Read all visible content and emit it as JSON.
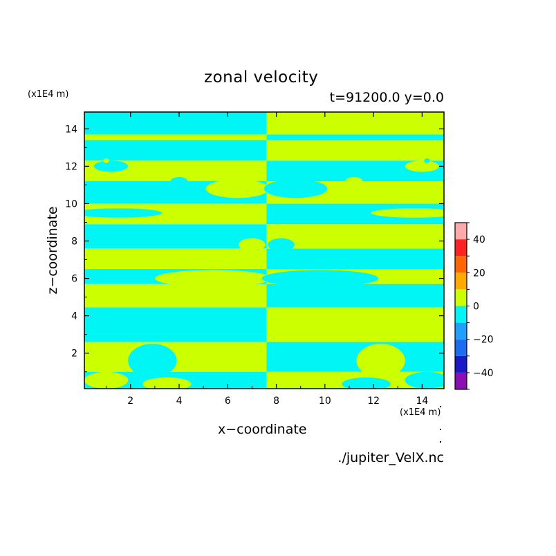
{
  "chart_data": {
    "type": "heatmap",
    "title": "zonal velocity",
    "subtitle": "t=91200.0 y=0.0",
    "xlabel": "x−coordinate",
    "ylabel": "z−coordinate",
    "x_unit": "(x1E4 m)",
    "y_unit": "(x1E4 m)",
    "source": "./jupiter_VelX.nc",
    "xlim": [
      0.1,
      14.9
    ],
    "ylim": [
      0.1,
      14.9
    ],
    "xticks": [
      2,
      4,
      6,
      8,
      10,
      12,
      14
    ],
    "yticks": [
      2,
      4,
      6,
      8,
      10,
      12,
      14
    ],
    "legend_position": "right",
    "colorbar": {
      "levels": [
        -50,
        -40,
        -30,
        -20,
        -10,
        0,
        10,
        20,
        30,
        40,
        50
      ],
      "ticks": [
        40,
        20,
        0,
        -20,
        -40
      ],
      "tick_labels": [
        "40",
        "20",
        "0",
        "−20",
        "−40"
      ],
      "colors": [
        "#8c0fb4",
        "#1a19c8",
        "#1b6cf0",
        "#1fa0ff",
        "#00f5f5",
        "#ccff00",
        "#ffaa00",
        "#ff6600",
        "#ff2222",
        "#ffaaaa"
      ]
    },
    "x_split": 7.6,
    "left_bands": [
      {
        "z0": 0.1,
        "z1": 1.0,
        "sign": "negative"
      },
      {
        "z0": 1.0,
        "z1": 2.6,
        "sign": "positive"
      },
      {
        "z0": 2.6,
        "z1": 4.45,
        "sign": "negative"
      },
      {
        "z0": 4.45,
        "z1": 5.7,
        "sign": "positive"
      },
      {
        "z0": 5.7,
        "z1": 6.5,
        "sign": "negative"
      },
      {
        "z0": 6.5,
        "z1": 7.6,
        "sign": "positive"
      },
      {
        "z0": 7.6,
        "z1": 8.9,
        "sign": "negative"
      },
      {
        "z0": 8.9,
        "z1": 10.0,
        "sign": "positive"
      },
      {
        "z0": 10.0,
        "z1": 11.2,
        "sign": "negative"
      },
      {
        "z0": 11.2,
        "z1": 12.3,
        "sign": "positive"
      },
      {
        "z0": 12.3,
        "z1": 13.4,
        "sign": "negative"
      },
      {
        "z0": 13.4,
        "z1": 13.7,
        "sign": "positive"
      },
      {
        "z0": 13.7,
        "z1": 14.9,
        "sign": "negative"
      }
    ],
    "right_bands": [
      {
        "z0": 0.1,
        "z1": 1.0,
        "sign": "positive"
      },
      {
        "z0": 1.0,
        "z1": 2.6,
        "sign": "negative"
      },
      {
        "z0": 2.6,
        "z1": 4.45,
        "sign": "positive"
      },
      {
        "z0": 4.45,
        "z1": 5.7,
        "sign": "negative"
      },
      {
        "z0": 5.7,
        "z1": 6.5,
        "sign": "positive"
      },
      {
        "z0": 6.5,
        "z1": 7.6,
        "sign": "negative"
      },
      {
        "z0": 7.6,
        "z1": 8.9,
        "sign": "positive"
      },
      {
        "z0": 8.9,
        "z1": 10.0,
        "sign": "negative"
      },
      {
        "z0": 10.0,
        "z1": 11.2,
        "sign": "positive"
      },
      {
        "z0": 11.2,
        "z1": 12.3,
        "sign": "negative"
      },
      {
        "z0": 12.3,
        "z1": 13.4,
        "sign": "positive"
      },
      {
        "z0": 13.4,
        "z1": 13.7,
        "sign": "negative"
      },
      {
        "z0": 13.7,
        "z1": 14.9,
        "sign": "positive"
      }
    ],
    "blobs": [
      {
        "x": 2.9,
        "z": 1.6,
        "rx": 1.0,
        "rz": 0.9,
        "sign": "negative"
      },
      {
        "x": 12.3,
        "z": 1.6,
        "rx": 1.0,
        "rz": 0.9,
        "sign": "positive"
      },
      {
        "x": 1.0,
        "z": 0.55,
        "rx": 0.9,
        "rz": 0.45,
        "sign": "positive"
      },
      {
        "x": 3.5,
        "z": 0.35,
        "rx": 1.0,
        "rz": 0.35,
        "sign": "positive"
      },
      {
        "x": 11.7,
        "z": 0.35,
        "rx": 1.0,
        "rz": 0.35,
        "sign": "negative"
      },
      {
        "x": 14.2,
        "z": 0.55,
        "rx": 0.9,
        "rz": 0.45,
        "sign": "negative"
      },
      {
        "x": 5.4,
        "z": 6.0,
        "rx": 2.4,
        "rz": 0.45,
        "sign": "positive"
      },
      {
        "x": 9.8,
        "z": 6.0,
        "rx": 2.4,
        "rz": 0.45,
        "sign": "negative"
      },
      {
        "x": 5.6,
        "z": 7.0,
        "rx": 1.6,
        "rz": 0.4,
        "sign": "positive"
      },
      {
        "x": 9.6,
        "z": 7.0,
        "rx": 1.6,
        "rz": 0.4,
        "sign": "negative"
      },
      {
        "x": 7.0,
        "z": 7.8,
        "rx": 0.55,
        "rz": 0.35,
        "sign": "positive"
      },
      {
        "x": 8.2,
        "z": 7.8,
        "rx": 0.55,
        "rz": 0.35,
        "sign": "negative"
      },
      {
        "x": 6.4,
        "z": 10.8,
        "rx": 1.3,
        "rz": 0.5,
        "sign": "positive"
      },
      {
        "x": 8.8,
        "z": 10.8,
        "rx": 1.3,
        "rz": 0.5,
        "sign": "negative"
      },
      {
        "x": 4.0,
        "z": 11.2,
        "rx": 0.35,
        "rz": 0.22,
        "sign": "negative"
      },
      {
        "x": 11.2,
        "z": 11.2,
        "rx": 0.35,
        "rz": 0.22,
        "sign": "positive"
      },
      {
        "x": 1.2,
        "z": 12.0,
        "rx": 0.7,
        "rz": 0.3,
        "sign": "negative"
      },
      {
        "x": 14.0,
        "z": 12.0,
        "rx": 0.7,
        "rz": 0.3,
        "sign": "positive"
      },
      {
        "x": 1.0,
        "z": 12.3,
        "rx": 0.12,
        "rz": 0.12,
        "sign": "positive"
      },
      {
        "x": 14.2,
        "z": 12.3,
        "rx": 0.12,
        "rz": 0.12,
        "sign": "negative"
      },
      {
        "x": 1.5,
        "z": 9.5,
        "rx": 1.8,
        "rz": 0.25,
        "sign": "negative"
      },
      {
        "x": 13.7,
        "z": 9.5,
        "rx": 1.8,
        "rz": 0.25,
        "sign": "positive"
      }
    ]
  }
}
